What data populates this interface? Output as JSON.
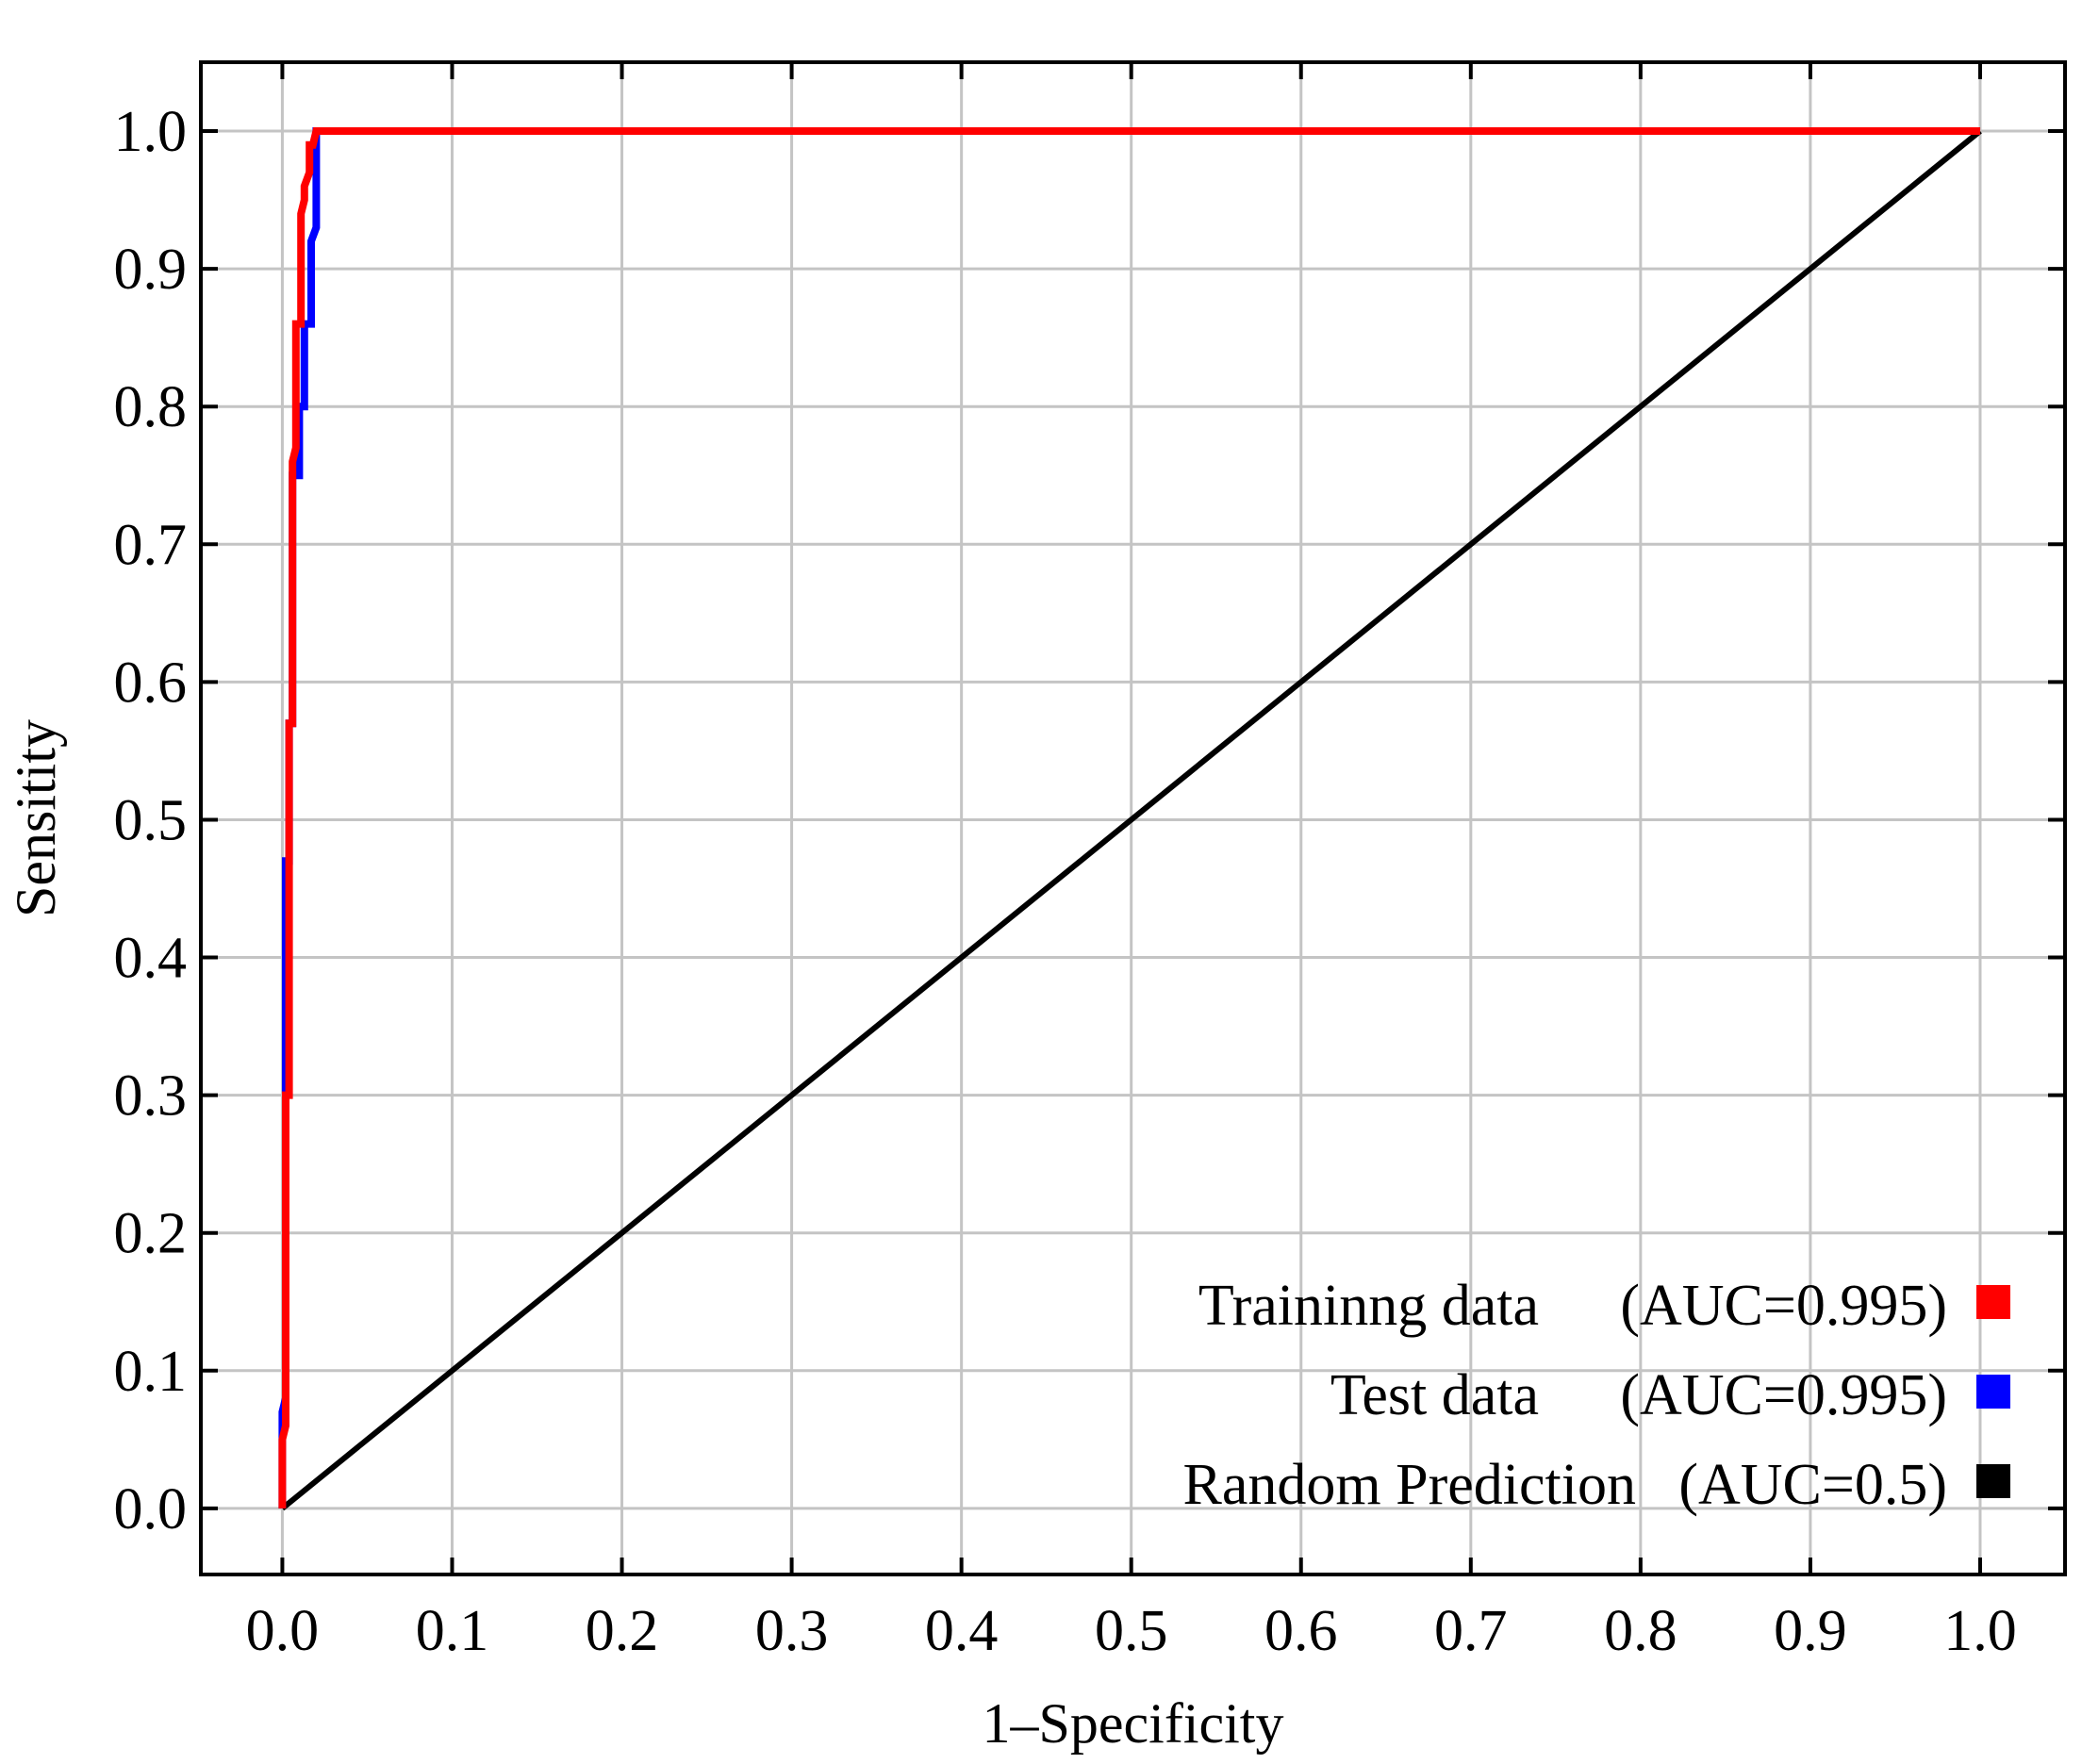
{
  "chart_data": {
    "type": "line",
    "title": "",
    "xlabel": "1–Specificity",
    "ylabel": "Sensitity",
    "xlim": [
      -0.048,
      1.05
    ],
    "ylim": [
      -0.048,
      1.05
    ],
    "xticks": [
      "0.0",
      "0.1",
      "0.2",
      "0.3",
      "0.4",
      "0.5",
      "0.6",
      "0.7",
      "0.8",
      "0.9",
      "1.0"
    ],
    "yticks": [
      "0.0",
      "0.1",
      "0.2",
      "0.3",
      "0.4",
      "0.5",
      "0.6",
      "0.7",
      "0.8",
      "0.9",
      "1.0"
    ],
    "grid": true,
    "legend_position": "bottom-right",
    "series": [
      {
        "name": "Traininng data",
        "auc_label": "(AUC=0.995)",
        "color": "#ff0000",
        "x": [
          0.0,
          0.0,
          0.002,
          0.002,
          0.004,
          0.004,
          0.006,
          0.006,
          0.008,
          0.008,
          0.011,
          0.011,
          0.013,
          0.013,
          0.016,
          0.016,
          0.018,
          0.02,
          0.023,
          1.0
        ],
        "y": [
          0.0,
          0.05,
          0.06,
          0.3,
          0.3,
          0.57,
          0.57,
          0.76,
          0.77,
          0.86,
          0.86,
          0.94,
          0.95,
          0.96,
          0.97,
          0.99,
          0.99,
          1.0,
          1.0,
          1.0
        ]
      },
      {
        "name": "Test data",
        "auc_label": "(AUC=0.995)",
        "color": "#0000ff",
        "x": [
          0.0,
          0.0,
          0.002,
          0.002,
          0.004,
          0.004,
          0.006,
          0.006,
          0.01,
          0.01,
          0.013,
          0.013,
          0.017,
          0.017,
          0.02,
          0.02,
          0.023,
          1.0
        ],
        "y": [
          0.0,
          0.07,
          0.08,
          0.47,
          0.47,
          0.57,
          0.57,
          0.75,
          0.75,
          0.8,
          0.8,
          0.86,
          0.86,
          0.92,
          0.93,
          1.0,
          1.0,
          1.0
        ]
      },
      {
        "name": "Random Prediction",
        "auc_label": "(AUC=0.5)",
        "color": "#000000",
        "x": [
          0.0,
          1.0
        ],
        "y": [
          0.0,
          1.0
        ]
      }
    ]
  }
}
